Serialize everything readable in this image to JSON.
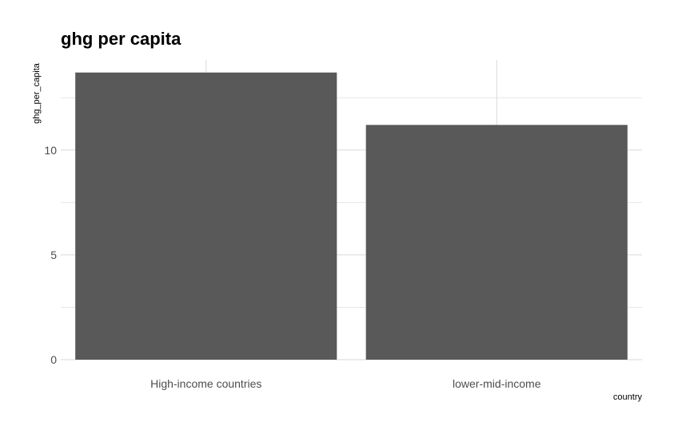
{
  "chart_data": {
    "type": "bar",
    "title": "ghg per capita",
    "xlabel": "country",
    "ylabel": "ghg_per_capita",
    "categories": [
      "High-income countries",
      "lower-mid-income"
    ],
    "values": [
      13.7,
      11.2
    ],
    "ylim": [
      0,
      14.3
    ],
    "yticks": [
      0,
      5,
      10
    ],
    "grid": true,
    "colors": {
      "bar": "#595959",
      "grid": "#d9d9d9",
      "tick_label": "#4d4d4d",
      "text": "#000000"
    }
  }
}
